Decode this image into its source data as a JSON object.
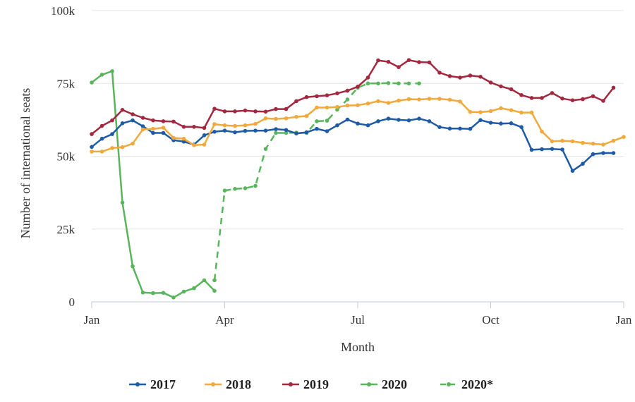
{
  "chart_data": {
    "type": "line",
    "xlabel": "Month",
    "ylabel": "Number of international seats",
    "x_tick_labels": [
      "Jan",
      "Apr",
      "Jul",
      "Oct",
      "Jan"
    ],
    "x_tick_weeks": [
      0,
      13,
      26,
      39,
      52
    ],
    "y_ticks": [
      0,
      25000,
      50000,
      75000,
      100000
    ],
    "y_tick_labels": [
      "0",
      "25k",
      "50k",
      "75k",
      "100k"
    ],
    "ylim": [
      0,
      100000
    ],
    "x_unit": "week of year",
    "xlim": [
      0,
      52
    ],
    "grid": true,
    "legend_position": "bottom",
    "series": [
      {
        "name": "2017",
        "color": "#1f5aa6",
        "dash": false,
        "x": [
          0,
          1,
          2,
          3,
          4,
          5,
          6,
          7,
          8,
          9,
          10,
          11,
          12,
          13,
          14,
          15,
          16,
          17,
          18,
          19,
          20,
          21,
          22,
          23,
          24,
          25,
          26,
          27,
          28,
          29,
          30,
          31,
          32,
          33,
          34,
          35,
          36,
          37,
          38,
          39,
          40,
          41,
          42,
          43,
          44,
          45,
          46,
          47,
          48,
          49,
          50,
          51
        ],
        "values": [
          53200,
          56000,
          57600,
          61300,
          62300,
          60300,
          58000,
          58000,
          55500,
          55000,
          54000,
          57200,
          58400,
          58800,
          58200,
          58700,
          58800,
          58800,
          59300,
          59000,
          57800,
          58200,
          59400,
          58600,
          60600,
          62600,
          61200,
          60600,
          62000,
          62900,
          62500,
          62300,
          62900,
          62000,
          60000,
          59500,
          59500,
          59400,
          62400,
          61500,
          61200,
          61300,
          60000,
          52200,
          52400,
          52500,
          52300,
          45000,
          47400,
          50700,
          51100,
          51100
        ]
      },
      {
        "name": "2018",
        "color": "#f2a93b",
        "dash": false,
        "x": [
          0,
          1,
          2,
          3,
          4,
          5,
          6,
          7,
          8,
          9,
          10,
          11,
          12,
          13,
          14,
          15,
          16,
          17,
          18,
          19,
          20,
          21,
          22,
          23,
          24,
          25,
          26,
          27,
          28,
          29,
          30,
          31,
          32,
          33,
          34,
          35,
          36,
          37,
          38,
          39,
          40,
          41,
          42,
          43,
          44,
          45,
          46,
          47,
          48,
          49,
          50,
          51,
          52
        ],
        "values": [
          51600,
          51600,
          52800,
          53100,
          54300,
          59200,
          59400,
          59800,
          56300,
          56000,
          53800,
          54000,
          61000,
          60600,
          60400,
          60600,
          61100,
          63000,
          62800,
          63000,
          63500,
          63800,
          66700,
          66700,
          66900,
          67400,
          67500,
          68100,
          68900,
          68300,
          69100,
          69600,
          69500,
          69700,
          69700,
          69400,
          68800,
          65200,
          65100,
          65500,
          66500,
          65800,
          65000,
          65000,
          58500,
          55100,
          55300,
          55100,
          54600,
          54300,
          54000,
          55300,
          56600
        ]
      },
      {
        "name": "2019",
        "color": "#a3283f",
        "dash": false,
        "x": [
          0,
          1,
          2,
          3,
          4,
          5,
          6,
          7,
          8,
          9,
          10,
          11,
          12,
          13,
          14,
          15,
          16,
          17,
          18,
          19,
          20,
          21,
          22,
          23,
          24,
          25,
          26,
          27,
          28,
          29,
          30,
          31,
          32,
          33,
          34,
          35,
          36,
          37,
          38,
          39,
          40,
          41,
          42,
          43,
          44,
          45,
          46,
          47,
          48,
          49,
          50,
          51
        ],
        "values": [
          57600,
          60400,
          62300,
          65900,
          64400,
          63200,
          62300,
          62000,
          61900,
          60100,
          60100,
          59700,
          66300,
          65400,
          65400,
          65700,
          65400,
          65300,
          66200,
          66200,
          68900,
          70300,
          70600,
          70900,
          71600,
          72500,
          73900,
          77000,
          82900,
          82400,
          80600,
          83000,
          82300,
          82200,
          78700,
          77500,
          77000,
          77700,
          77300,
          75300,
          74000,
          73000,
          71000,
          70000,
          70000,
          71700,
          69800,
          69200,
          69600,
          70600,
          69000,
          73500
        ]
      },
      {
        "name": "2020",
        "color": "#59b55b",
        "dash": false,
        "x": [
          0,
          1,
          2,
          3,
          4,
          5,
          6,
          7,
          8,
          9,
          10,
          11,
          12
        ],
        "values": [
          75300,
          78000,
          79200,
          34100,
          12200,
          3200,
          3000,
          3100,
          1500,
          3500,
          4700,
          7400,
          3800
        ]
      },
      {
        "name": "2020*",
        "color": "#59b55b",
        "dash": true,
        "x": [
          12,
          13,
          14,
          15,
          16,
          17,
          18,
          19,
          20,
          21,
          22,
          23,
          24,
          25,
          26,
          27,
          28,
          29,
          30,
          31,
          32
        ],
        "values": [
          7400,
          38200,
          38800,
          39000,
          39800,
          52500,
          58000,
          58000,
          58100,
          58000,
          62000,
          62200,
          66000,
          69500,
          73500,
          75000,
          75000,
          75100,
          75000,
          75000,
          75000
        ]
      }
    ]
  }
}
